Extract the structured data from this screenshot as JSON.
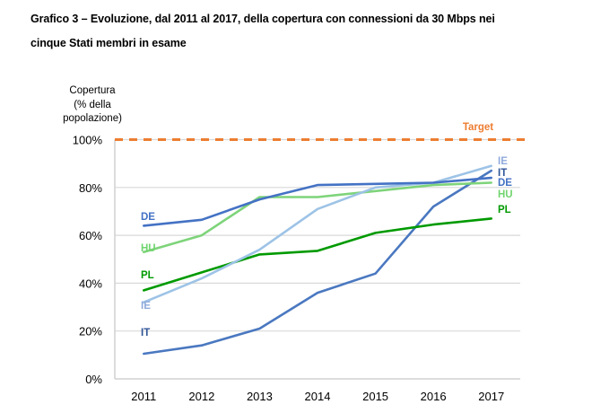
{
  "title_lines": [
    "Grafico 3 – Evoluzione, dal 2011 al 2017, della copertura con connessioni da 30 Mbps nei",
    "cinque Stati membri in esame"
  ],
  "chart_data": {
    "type": "line",
    "title": "Grafico 3 – Evoluzione, dal 2011 al 2017, della copertura con connessioni da 30 Mbps nei cinque Stati membri in esame",
    "xlabel": "",
    "ylabel_lines": [
      "Copertura",
      "(% della",
      "popolazione)"
    ],
    "categories": [
      "2011",
      "2012",
      "2013",
      "2014",
      "2015",
      "2016",
      "2017"
    ],
    "ylim": [
      0,
      100
    ],
    "yticks": [
      0,
      20,
      40,
      60,
      80,
      100
    ],
    "ytick_labels": [
      "0%",
      "20%",
      "40%",
      "60%",
      "80%",
      "100%"
    ],
    "grid": true,
    "target": {
      "label": "Target",
      "value": 100,
      "color": "#ED7D31"
    },
    "series": [
      {
        "name": "DE",
        "color": "#4472C4",
        "label_color": "#4472C4",
        "values": [
          64,
          66.5,
          75,
          81,
          81.5,
          82,
          84
        ]
      },
      {
        "name": "HU",
        "color": "#7ED47A",
        "label_color": "#70D56E",
        "values": [
          53,
          60,
          76,
          76,
          78.5,
          81,
          82
        ]
      },
      {
        "name": "PL",
        "color": "#009A00",
        "label_color": "#009A00",
        "values": [
          37,
          44.5,
          52,
          53.5,
          61,
          64.5,
          67
        ]
      },
      {
        "name": "IE",
        "color": "#9DC3E6",
        "label_color": "#8FAADC",
        "values": [
          32,
          42,
          54,
          71,
          80,
          82,
          89
        ]
      },
      {
        "name": "IT",
        "color": "#4A78C0",
        "label_color": "#2F5597",
        "values": [
          10.5,
          14,
          21,
          36,
          44,
          72,
          87
        ]
      }
    ],
    "legend": "inline-labels"
  }
}
